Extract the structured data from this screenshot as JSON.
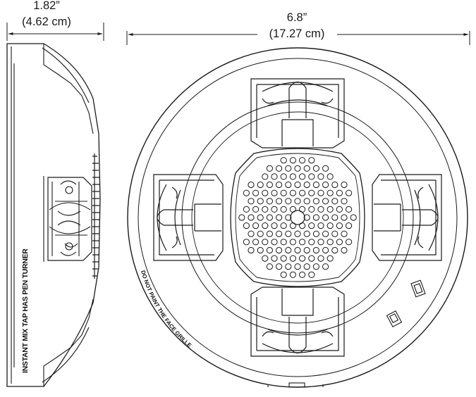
{
  "dimensions": {
    "depth_in": "1.82”",
    "depth_cm": "(4.62 cm)",
    "diameter_in": "6.8”",
    "diameter_cm": "(17.27 cm)"
  },
  "labels": {
    "side_text": "INSTANT MIX TAP HAS PEN TURNER",
    "face_text": "DO NOT PAINT THE FACE GRILLE"
  }
}
